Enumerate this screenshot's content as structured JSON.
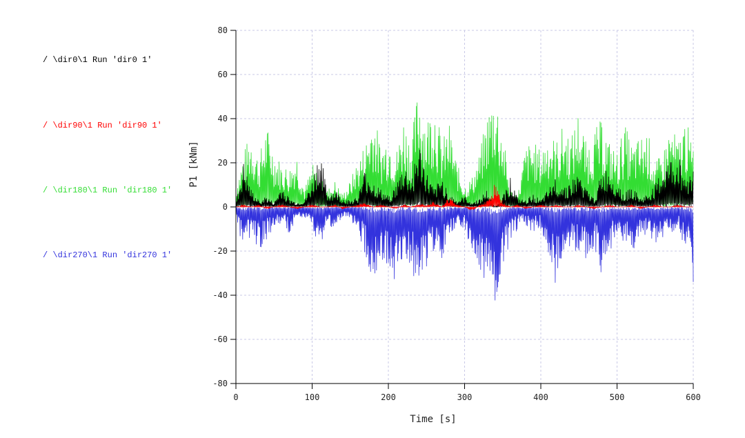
{
  "chart_data": {
    "type": "line",
    "title": "",
    "xlabel": "Time [s]",
    "ylabel": "P1  [kNm]",
    "xlim": [
      0,
      600
    ],
    "ylim": [
      -80,
      80
    ],
    "xticks": [
      "0",
      "100",
      "200",
      "300",
      "400",
      "500",
      "600"
    ],
    "yticks": [
      "80",
      "60",
      "40",
      "20",
      "0",
      "-20",
      "-40",
      "-60",
      "-80"
    ],
    "grid": true,
    "legend_position": "left",
    "series": [
      {
        "name": "/ \\dir0\\1 Run 'dir0 1'",
        "color": "#000000",
        "x": [
          0,
          10,
          20,
          30,
          40,
          50,
          60,
          70,
          80,
          90,
          100,
          110,
          120,
          130,
          140,
          150,
          160,
          170,
          180,
          190,
          200,
          210,
          220,
          230,
          240,
          250,
          260,
          270,
          280,
          290,
          300,
          310,
          320,
          330,
          340,
          350,
          360,
          370,
          380,
          390,
          400,
          410,
          420,
          430,
          440,
          450,
          460,
          470,
          480,
          490,
          500,
          510,
          520,
          530,
          540,
          550,
          560,
          570,
          580,
          590,
          600
        ],
        "y": [
          2,
          20,
          8,
          3,
          5,
          2,
          10,
          4,
          2,
          3,
          12,
          27,
          6,
          8,
          4,
          3,
          5,
          18,
          12,
          8,
          5,
          10,
          20,
          14,
          30,
          16,
          8,
          14,
          6,
          3,
          5,
          2,
          4,
          8,
          0,
          5,
          14,
          4,
          3,
          6,
          3,
          8,
          14,
          10,
          12,
          16,
          8,
          4,
          16,
          18,
          12,
          6,
          10,
          4,
          6,
          10,
          18,
          22,
          24,
          15,
          16
        ]
      },
      {
        "name": "/ \\dir90\\1 Run 'dir90 1'",
        "color": "#ff0000",
        "x": [
          0,
          10,
          20,
          30,
          40,
          50,
          60,
          70,
          80,
          90,
          100,
          110,
          120,
          130,
          140,
          150,
          160,
          170,
          180,
          190,
          200,
          210,
          220,
          230,
          240,
          250,
          260,
          270,
          280,
          290,
          300,
          310,
          320,
          330,
          340,
          350,
          360,
          370,
          380,
          390,
          400,
          410,
          420,
          430,
          440,
          450,
          460,
          470,
          480,
          490,
          500,
          510,
          520,
          530,
          540,
          550,
          560,
          570,
          580,
          590,
          600
        ],
        "y": [
          0,
          1,
          0,
          1,
          -1,
          0,
          1,
          0,
          -1,
          0,
          1,
          0,
          0,
          1,
          -1,
          0,
          1,
          2,
          0,
          1,
          0,
          -1,
          1,
          0,
          2,
          1,
          3,
          0,
          5,
          1,
          0,
          -2,
          1,
          3,
          11,
          2,
          0,
          1,
          -1,
          0,
          1,
          0,
          1,
          0,
          0,
          1,
          0,
          -1,
          0,
          1,
          0,
          0,
          1,
          -1,
          0,
          1,
          0,
          0,
          1,
          0,
          0
        ]
      },
      {
        "name": "/ \\dir180\\1 Run 'dir180 1'",
        "color": "#33dd33",
        "x": [
          0,
          10,
          20,
          30,
          40,
          50,
          60,
          70,
          80,
          90,
          100,
          110,
          120,
          130,
          140,
          150,
          160,
          170,
          180,
          190,
          200,
          210,
          220,
          230,
          240,
          250,
          260,
          270,
          280,
          290,
          300,
          310,
          320,
          330,
          340,
          350,
          360,
          370,
          380,
          390,
          400,
          410,
          420,
          430,
          440,
          450,
          460,
          470,
          480,
          490,
          500,
          510,
          520,
          530,
          540,
          550,
          560,
          570,
          580,
          590,
          600
        ],
        "y": [
          10,
          25,
          35,
          22,
          38,
          26,
          20,
          18,
          25,
          8,
          20,
          14,
          8,
          12,
          6,
          12,
          22,
          30,
          45,
          28,
          35,
          25,
          42,
          30,
          58,
          40,
          52,
          30,
          38,
          20,
          10,
          14,
          25,
          44,
          55,
          35,
          8,
          6,
          28,
          30,
          26,
          35,
          30,
          38,
          32,
          45,
          28,
          35,
          40,
          30,
          25,
          38,
          28,
          32,
          35,
          20,
          25,
          38,
          30,
          42,
          25
        ]
      },
      {
        "name": "/ \\dir270\\1 Run 'dir270 1'",
        "color": "#3333dd",
        "x": [
          0,
          10,
          20,
          30,
          40,
          50,
          60,
          70,
          80,
          90,
          100,
          110,
          120,
          130,
          140,
          150,
          160,
          170,
          180,
          190,
          200,
          210,
          220,
          230,
          240,
          250,
          260,
          270,
          280,
          290,
          300,
          310,
          320,
          330,
          340,
          350,
          360,
          370,
          380,
          390,
          400,
          410,
          420,
          430,
          440,
          450,
          460,
          470,
          480,
          490,
          500,
          510,
          520,
          530,
          540,
          550,
          560,
          570,
          580,
          590,
          600
        ],
        "y": [
          -5,
          -22,
          -12,
          -20,
          -15,
          -10,
          -8,
          -12,
          -6,
          -5,
          -10,
          -18,
          -8,
          -10,
          -6,
          -5,
          -12,
          -22,
          -35,
          -25,
          -30,
          -36,
          -22,
          -30,
          -34,
          -28,
          -20,
          -26,
          -15,
          -8,
          -10,
          -25,
          -30,
          -40,
          -48,
          -30,
          -15,
          -10,
          -8,
          -12,
          -10,
          -25,
          -36,
          -20,
          -18,
          -22,
          -25,
          -18,
          -34,
          -20,
          -15,
          -18,
          -20,
          -15,
          -12,
          -18,
          -16,
          -12,
          -10,
          -20,
          -34
        ]
      }
    ]
  }
}
